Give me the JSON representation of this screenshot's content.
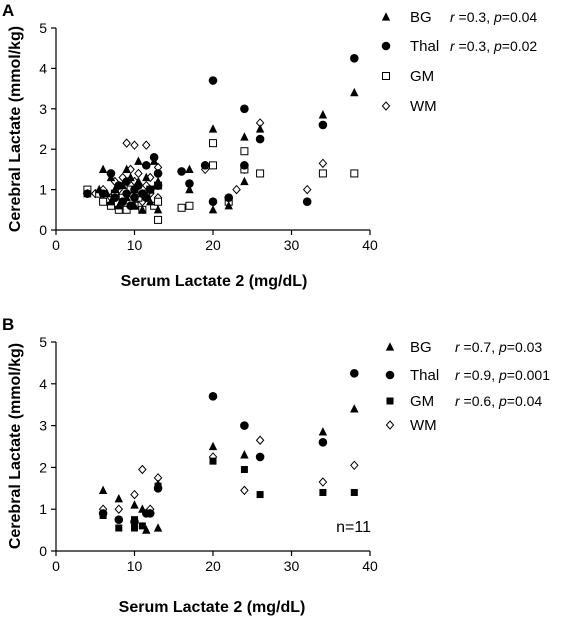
{
  "chart_data": [
    {
      "panel": "A",
      "type": "scatter",
      "xlabel": "Serum Lactate 2 (mg/dL)",
      "ylabel": "Cerebral Lactate (mmol/kg)",
      "xlim": [
        0,
        40
      ],
      "ylim": [
        0,
        5
      ],
      "xticks": [
        "0",
        "10",
        "20",
        "30",
        "40"
      ],
      "yticks": [
        "0",
        "1",
        "2",
        "3",
        "4",
        "5"
      ],
      "grid": false,
      "legend_position": "top-right",
      "note": "",
      "series": [
        {
          "name": "BG",
          "marker": "triangle",
          "stat": {
            "r": "0.3",
            "p": "0.04"
          },
          "points": [
            [
              4,
              0.9
            ],
            [
              5.5,
              1.0
            ],
            [
              6,
              1.5
            ],
            [
              6.5,
              0.9
            ],
            [
              7,
              0.7
            ],
            [
              7,
              1.3
            ],
            [
              7.5,
              1.0
            ],
            [
              8,
              0.6
            ],
            [
              8.5,
              1.1
            ],
            [
              9,
              1.5
            ],
            [
              9,
              0.8
            ],
            [
              9.5,
              1.3
            ],
            [
              10,
              1.0
            ],
            [
              10,
              0.6
            ],
            [
              10.5,
              1.2
            ],
            [
              10.5,
              1.7
            ],
            [
              11,
              0.9
            ],
            [
              11,
              0.5
            ],
            [
              11.5,
              1.3
            ],
            [
              12,
              1.0
            ],
            [
              12,
              0.7
            ],
            [
              12.5,
              1.7
            ],
            [
              13,
              1.2
            ],
            [
              13,
              0.5
            ],
            [
              17,
              1.5
            ],
            [
              17,
              1.0
            ],
            [
              20,
              2.5
            ],
            [
              20,
              0.5
            ],
            [
              22,
              0.6
            ],
            [
              24,
              2.3
            ],
            [
              24,
              1.2
            ],
            [
              26,
              2.5
            ],
            [
              34,
              2.85
            ],
            [
              38,
              3.4
            ]
          ]
        },
        {
          "name": "Thal",
          "marker": "circle",
          "stat": {
            "r": "0.3",
            "p": "0.02"
          },
          "points": [
            [
              4,
              0.9
            ],
            [
              6,
              0.9
            ],
            [
              7,
              1.4
            ],
            [
              7.5,
              0.8
            ],
            [
              8,
              1.1
            ],
            [
              8.5,
              0.7
            ],
            [
              9,
              0.9
            ],
            [
              9,
              1.2
            ],
            [
              9.5,
              0.6
            ],
            [
              10,
              1.0
            ],
            [
              10,
              0.8
            ],
            [
              10.5,
              1.1
            ],
            [
              11,
              0.9
            ],
            [
              11.5,
              1.6
            ],
            [
              11.5,
              0.8
            ],
            [
              12,
              1.0
            ],
            [
              12.5,
              1.8
            ],
            [
              13,
              1.4
            ],
            [
              13,
              1.1
            ],
            [
              16,
              1.45
            ],
            [
              17,
              1.15
            ],
            [
              19,
              1.6
            ],
            [
              20,
              3.7
            ],
            [
              20,
              0.7
            ],
            [
              22,
              0.8
            ],
            [
              24,
              3.0
            ],
            [
              24,
              1.6
            ],
            [
              26,
              2.25
            ],
            [
              32,
              0.7
            ],
            [
              34,
              2.6
            ],
            [
              38,
              4.25
            ]
          ]
        },
        {
          "name": "GM",
          "marker": "square-open",
          "stat": null,
          "points": [
            [
              4,
              1.0
            ],
            [
              5.5,
              0.9
            ],
            [
              6,
              0.7
            ],
            [
              7,
              0.6
            ],
            [
              7.5,
              0.9
            ],
            [
              8,
              0.5
            ],
            [
              8.5,
              0.8
            ],
            [
              9,
              0.5
            ],
            [
              9.5,
              1.0
            ],
            [
              10,
              0.6
            ],
            [
              10.5,
              0.8
            ],
            [
              11,
              0.5
            ],
            [
              11.5,
              0.9
            ],
            [
              12,
              1.0
            ],
            [
              12.5,
              0.6
            ],
            [
              13,
              0.7
            ],
            [
              13,
              1.1
            ],
            [
              13,
              0.25
            ],
            [
              16,
              0.55
            ],
            [
              17,
              0.6
            ],
            [
              20,
              2.15
            ],
            [
              20,
              1.6
            ],
            [
              22,
              0.7
            ],
            [
              24,
              1.95
            ],
            [
              24,
              1.5
            ],
            [
              26,
              1.4
            ],
            [
              34,
              1.4
            ],
            [
              38,
              1.4
            ]
          ]
        },
        {
          "name": "WM",
          "marker": "diamond-open",
          "stat": null,
          "points": [
            [
              5,
              0.9
            ],
            [
              6,
              1.0
            ],
            [
              7,
              0.8
            ],
            [
              7.5,
              1.2
            ],
            [
              8,
              1.0
            ],
            [
              8.5,
              1.3
            ],
            [
              9,
              2.15
            ],
            [
              9.5,
              1.5
            ],
            [
              9.5,
              0.9
            ],
            [
              10,
              2.1
            ],
            [
              10,
              1.2
            ],
            [
              10.5,
              1.4
            ],
            [
              11,
              0.7
            ],
            [
              11.5,
              2.1
            ],
            [
              11.5,
              1.1
            ],
            [
              12,
              1.3
            ],
            [
              12,
              0.9
            ],
            [
              13,
              1.55
            ],
            [
              13,
              0.8
            ],
            [
              19,
              1.5
            ],
            [
              23,
              1.0
            ],
            [
              24,
              1.5
            ],
            [
              26,
              2.65
            ],
            [
              32,
              1.0
            ],
            [
              34,
              1.65
            ]
          ]
        }
      ]
    },
    {
      "panel": "B",
      "type": "scatter",
      "xlabel": "Serum Lactate 2 (mg/dL)",
      "ylabel": "Cerebral Lactate (mmol/kg)",
      "xlim": [
        0,
        40
      ],
      "ylim": [
        0,
        5
      ],
      "xticks": [
        "0",
        "10",
        "20",
        "30",
        "40"
      ],
      "yticks": [
        "0",
        "1",
        "2",
        "3",
        "4",
        "5"
      ],
      "grid": false,
      "legend_position": "top-right",
      "note": "n=11",
      "series": [
        {
          "name": "BG",
          "marker": "triangle",
          "stat": {
            "r": "0.7",
            "p": "0.03"
          },
          "points": [
            [
              6,
              1.45
            ],
            [
              8,
              1.25
            ],
            [
              10,
              1.1
            ],
            [
              11,
              1.0
            ],
            [
              11.5,
              0.5
            ],
            [
              13,
              1.6
            ],
            [
              13,
              0.55
            ],
            [
              20,
              2.5
            ],
            [
              24,
              2.3
            ],
            [
              34,
              2.85
            ],
            [
              38,
              3.4
            ]
          ]
        },
        {
          "name": "Thal",
          "marker": "circle",
          "stat": {
            "r": "0.9",
            "p": "0.001"
          },
          "points": [
            [
              6,
              0.9
            ],
            [
              8,
              0.75
            ],
            [
              10,
              0.7
            ],
            [
              11.5,
              0.9
            ],
            [
              12,
              0.9
            ],
            [
              13,
              1.5
            ],
            [
              20,
              3.7
            ],
            [
              24,
              3.0
            ],
            [
              26,
              2.25
            ],
            [
              34,
              2.6
            ],
            [
              38,
              4.25
            ]
          ]
        },
        {
          "name": "GM",
          "marker": "square",
          "stat": {
            "r": "0.6",
            "p": "0.04"
          },
          "points": [
            [
              6,
              0.85
            ],
            [
              8,
              0.55
            ],
            [
              10,
              0.75
            ],
            [
              10,
              0.55
            ],
            [
              11,
              0.6
            ],
            [
              13,
              1.55
            ],
            [
              20,
              2.15
            ],
            [
              24,
              1.95
            ],
            [
              26,
              1.35
            ],
            [
              34,
              1.4
            ],
            [
              38,
              1.4
            ]
          ]
        },
        {
          "name": "WM",
          "marker": "diamond-open",
          "stat": null,
          "points": [
            [
              6,
              1.0
            ],
            [
              8,
              1.0
            ],
            [
              10,
              1.35
            ],
            [
              11,
              1.95
            ],
            [
              12,
              1.0
            ],
            [
              13,
              1.75
            ],
            [
              20,
              2.25
            ],
            [
              24,
              1.45
            ],
            [
              26,
              2.65
            ],
            [
              34,
              1.65
            ],
            [
              38,
              2.05
            ]
          ]
        }
      ]
    }
  ]
}
